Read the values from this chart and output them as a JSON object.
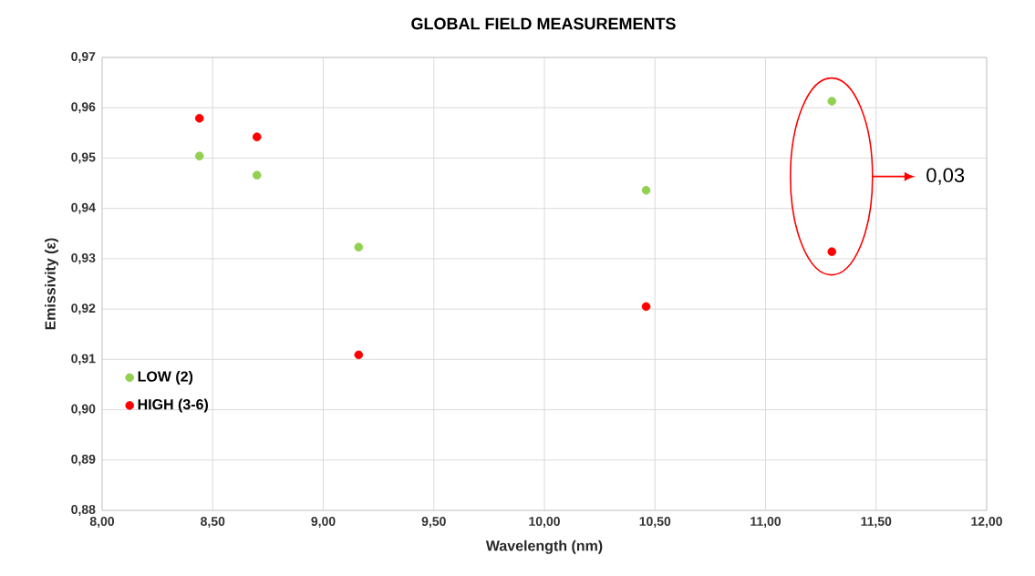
{
  "chart_data": {
    "type": "scatter",
    "title": "GLOBAL FIELD MEASUREMENTS",
    "xlabel": "Wavelength (nm)",
    "ylabel": "Emissivity (ε)",
    "series": [
      {
        "name": "LOW (2)",
        "color": "#92d050",
        "x": [
          8.44,
          8.7,
          9.16,
          10.46,
          11.3
        ],
        "values": [
          0.9504,
          0.9466,
          0.9323,
          0.9436,
          0.9613
        ]
      },
      {
        "name": "HIGH (3-6)",
        "color": "#ff0000",
        "x": [
          8.44,
          8.7,
          9.16,
          10.46,
          11.3
        ],
        "values": [
          0.9579,
          0.9542,
          0.9109,
          0.9205,
          0.9314
        ]
      }
    ],
    "xlim": [
      8.0,
      12.0
    ],
    "ylim": [
      0.88,
      0.97
    ],
    "xticks": [
      {
        "value": 8.0,
        "label": "8,00"
      },
      {
        "value": 8.5,
        "label": "8,50"
      },
      {
        "value": 9.0,
        "label": "9,00"
      },
      {
        "value": 9.5,
        "label": "9,50"
      },
      {
        "value": 10.0,
        "label": "10,00"
      },
      {
        "value": 10.5,
        "label": "10,50"
      },
      {
        "value": 11.0,
        "label": "11,00"
      },
      {
        "value": 11.5,
        "label": "11,50"
      },
      {
        "value": 12.0,
        "label": "12,00"
      }
    ],
    "yticks": [
      {
        "value": 0.88,
        "label": "0,88"
      },
      {
        "value": 0.89,
        "label": "0,89"
      },
      {
        "value": 0.9,
        "label": "0,90"
      },
      {
        "value": 0.91,
        "label": "0,91"
      },
      {
        "value": 0.92,
        "label": "0,92"
      },
      {
        "value": 0.93,
        "label": "0,93"
      },
      {
        "value": 0.94,
        "label": "0,94"
      },
      {
        "value": 0.95,
        "label": "0,95"
      },
      {
        "value": 0.96,
        "label": "0,96"
      },
      {
        "value": 0.97,
        "label": "0,97"
      }
    ],
    "grid": true,
    "legend": "bottom left",
    "marker": "circle",
    "annotations": [
      "0,03"
    ]
  }
}
